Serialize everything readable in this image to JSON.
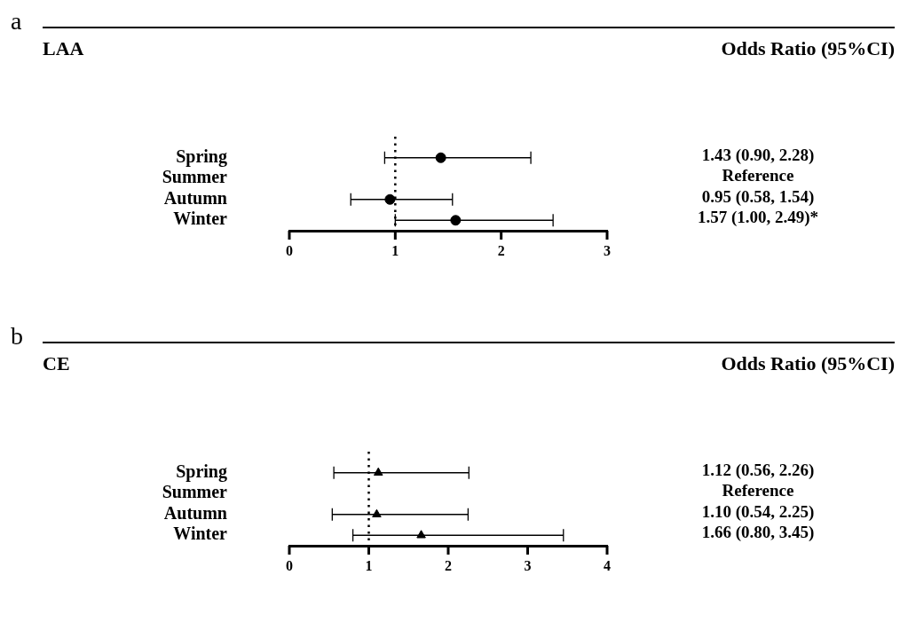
{
  "chart_data": [
    {
      "type": "scatter",
      "title": "LAA",
      "annotations": [
        "a",
        "Odds Ratio (95%CI)"
      ],
      "orientation": "horizontal",
      "categories": [
        "Spring",
        "Summer",
        "Autumn",
        "Winter"
      ],
      "series": [
        {
          "color": "#000000",
          "marker": "circle",
          "values": [
            1.43,
            null,
            0.95,
            1.57
          ],
          "errors": [
            [
              0.9,
              2.28
            ],
            null,
            [
              0.58,
              1.54
            ],
            [
              1.0,
              2.49
            ]
          ],
          "value_labels": [
            "1.43 (0.90, 2.28)",
            "Reference",
            "0.95 (0.58, 1.54)",
            "1.57 (1.00, 2.49)*"
          ]
        }
      ],
      "xlim": [
        0,
        3
      ],
      "xticks": [
        0,
        1,
        2,
        3
      ],
      "ref_lines": [
        {
          "axis": "x",
          "value": 1,
          "line_style": "dotted",
          "color": "#000000"
        }
      ],
      "grid": false,
      "legend": false
    },
    {
      "type": "scatter",
      "title": "CE",
      "annotations": [
        "b",
        "Odds Ratio (95%CI)"
      ],
      "orientation": "horizontal",
      "categories": [
        "Spring",
        "Summer",
        "Autumn",
        "Winter"
      ],
      "series": [
        {
          "color": "#000000",
          "marker": "triangle",
          "values": [
            1.12,
            null,
            1.1,
            1.66
          ],
          "errors": [
            [
              0.56,
              2.26
            ],
            null,
            [
              0.54,
              2.25
            ],
            [
              0.8,
              3.45
            ]
          ],
          "value_labels": [
            "1.12 (0.56, 2.26)",
            "Reference",
            "1.10 (0.54, 2.25)",
            "1.66 (0.80, 3.45)"
          ]
        }
      ],
      "xlim": [
        0,
        4
      ],
      "xticks": [
        0,
        1,
        2,
        3,
        4
      ],
      "ref_lines": [
        {
          "axis": "x",
          "value": 1,
          "line_style": "dotted",
          "color": "#000000"
        }
      ],
      "grid": false,
      "legend": false
    }
  ]
}
